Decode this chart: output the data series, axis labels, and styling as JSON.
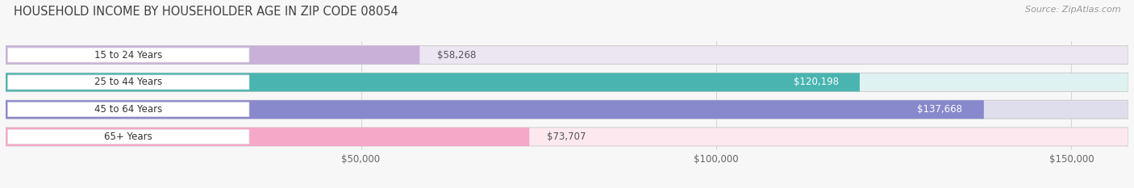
{
  "title": "HOUSEHOLD INCOME BY HOUSEHOLDER AGE IN ZIP CODE 08054",
  "source": "Source: ZipAtlas.com",
  "categories": [
    "15 to 24 Years",
    "25 to 44 Years",
    "45 to 64 Years",
    "65+ Years"
  ],
  "values": [
    58268,
    120198,
    137668,
    73707
  ],
  "bar_colors": [
    "#c9b0d8",
    "#4ab5b0",
    "#8888cc",
    "#f5a8c8"
  ],
  "bar_bg_colors": [
    "#ece5f2",
    "#dff2f2",
    "#dedeed",
    "#fde8f0"
  ],
  "value_inside": [
    false,
    true,
    true,
    false
  ],
  "value_labels": [
    "$58,268",
    "$120,198",
    "$137,668",
    "$73,707"
  ],
  "value_color_inside": "#ffffff",
  "value_color_outside": "#555555",
  "x_ticks": [
    50000,
    100000,
    150000
  ],
  "x_tick_labels": [
    "$50,000",
    "$100,000",
    "$150,000"
  ],
  "xlim": [
    0,
    158000
  ],
  "background_color": "#f7f7f7",
  "pill_bg": "#ffffff",
  "pill_edge": "#dddddd",
  "grid_color": "#d8d8d8",
  "title_fontsize": 10.5,
  "source_fontsize": 8,
  "bar_fontsize": 8.5,
  "cat_fontsize": 8.5,
  "tick_fontsize": 8.5,
  "title_color": "#404040",
  "source_color": "#999999"
}
